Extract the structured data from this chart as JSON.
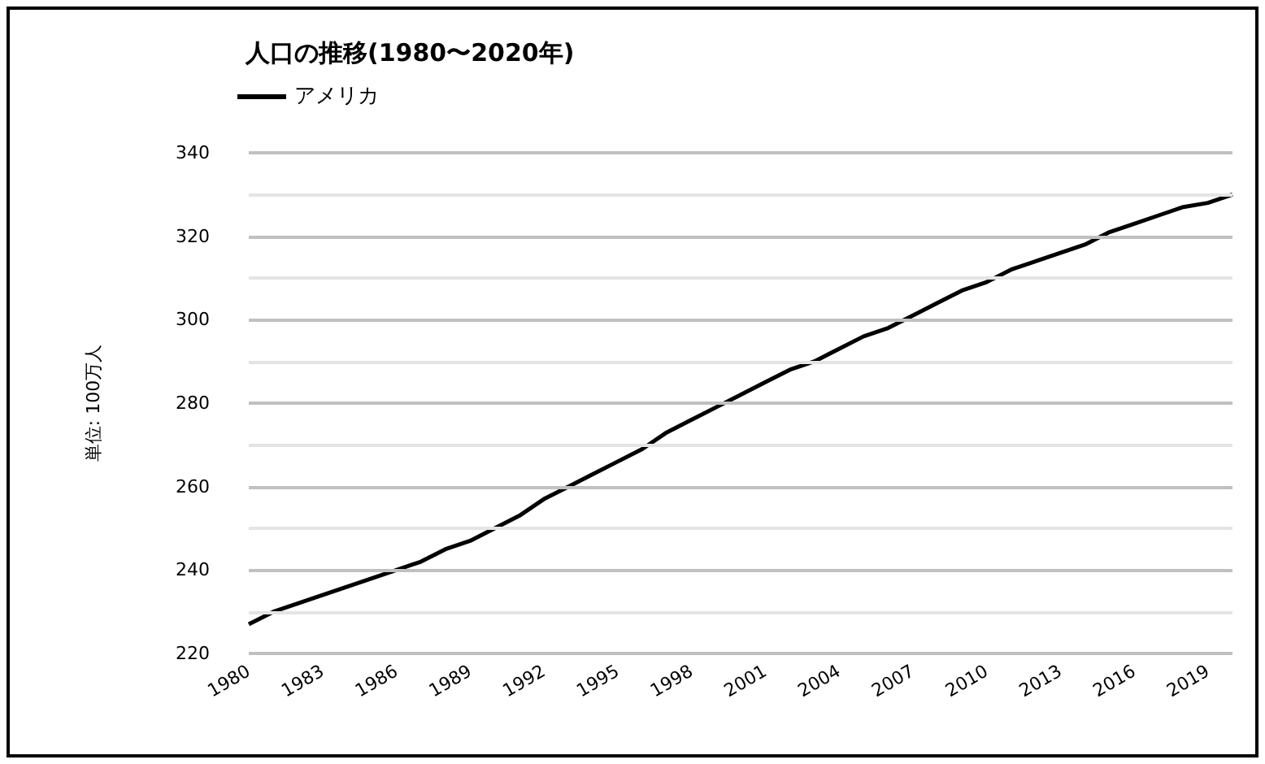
{
  "chart_data": {
    "type": "line",
    "title": "人口の推移(1980〜2020年)",
    "ylabel": "単位: 100万人",
    "x": [
      1980,
      1981,
      1982,
      1983,
      1984,
      1985,
      1986,
      1987,
      1988,
      1989,
      1990,
      1991,
      1992,
      1993,
      1994,
      1995,
      1996,
      1997,
      1998,
      1999,
      2000,
      2001,
      2002,
      2003,
      2004,
      2005,
      2006,
      2007,
      2008,
      2009,
      2010,
      2011,
      2012,
      2013,
      2014,
      2015,
      2016,
      2017,
      2018,
      2019,
      2020
    ],
    "series": [
      {
        "name": "アメリカ",
        "color": "#000000",
        "values": [
          227,
          230,
          232,
          234,
          236,
          238,
          240,
          242,
          245,
          247,
          250,
          253,
          257,
          260,
          263,
          266,
          269,
          273,
          276,
          279,
          282,
          285,
          288,
          290,
          293,
          296,
          298,
          301,
          304,
          307,
          309,
          312,
          314,
          316,
          318,
          321,
          323,
          325,
          327,
          328,
          330
        ]
      }
    ],
    "xlim": [
      1980,
      2020
    ],
    "xticks": [
      1980,
      1983,
      1986,
      1989,
      1992,
      1995,
      1998,
      2001,
      2004,
      2007,
      2010,
      2013,
      2016,
      2019
    ],
    "ylim": [
      220,
      340
    ],
    "yticks": [
      220,
      {
        "value": 230,
        "label": null
      },
      240,
      {
        "value": 250,
        "label": null
      },
      260,
      {
        "value": 270,
        "label": null
      },
      280,
      {
        "value": 290,
        "label": null
      },
      300,
      {
        "value": 310,
        "label": null
      },
      320,
      {
        "value": 330,
        "label": null
      },
      340
    ],
    "grid": "y",
    "legend": "top left",
    "marker": "none",
    "line_style": "solid"
  }
}
